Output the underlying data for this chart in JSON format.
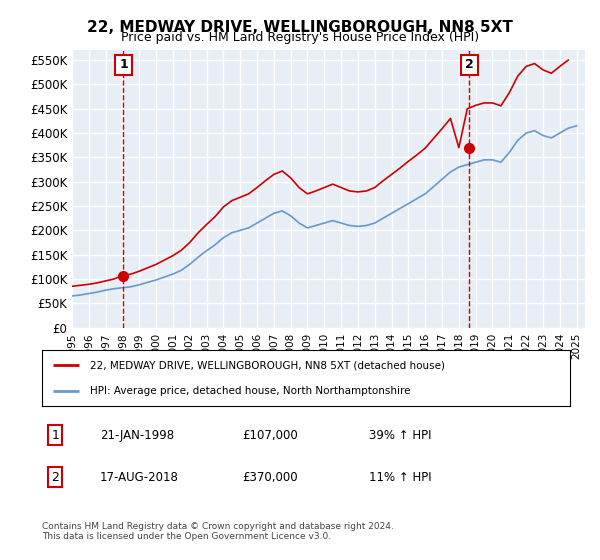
{
  "title": "22, MEDWAY DRIVE, WELLINGBOROUGH, NN8 5XT",
  "subtitle": "Price paid vs. HM Land Registry's House Price Index (HPI)",
  "ylabel_ticks": [
    "£0",
    "£50K",
    "£100K",
    "£150K",
    "£200K",
    "£250K",
    "£300K",
    "£350K",
    "£400K",
    "£450K",
    "£500K",
    "£550K"
  ],
  "ylim": [
    0,
    570000
  ],
  "ytick_vals": [
    0,
    50000,
    100000,
    150000,
    200000,
    250000,
    300000,
    350000,
    400000,
    450000,
    500000,
    550000
  ],
  "xlim_start": 1995.0,
  "xlim_end": 2025.5,
  "sale1_x": 1998.06,
  "sale1_y": 107000,
  "sale1_label": "1",
  "sale2_x": 2018.63,
  "sale2_y": 370000,
  "sale2_label": "2",
  "hpi_color": "#6699cc",
  "price_color": "#cc0000",
  "legend1_label": "22, MEDWAY DRIVE, WELLINGBOROUGH, NN8 5XT (detached house)",
  "legend2_label": "HPI: Average price, detached house, North Northamptonshire",
  "ann1_date": "21-JAN-1998",
  "ann1_price": "£107,000",
  "ann1_hpi": "39% ↑ HPI",
  "ann2_date": "17-AUG-2018",
  "ann2_price": "£370,000",
  "ann2_hpi": "11% ↑ HPI",
  "footnote": "Contains HM Land Registry data © Crown copyright and database right 2024.\nThis data is licensed under the Open Government Licence v3.0.",
  "bg_color": "#ffffff",
  "plot_bg_color": "#e8eef5",
  "grid_color": "#ffffff"
}
